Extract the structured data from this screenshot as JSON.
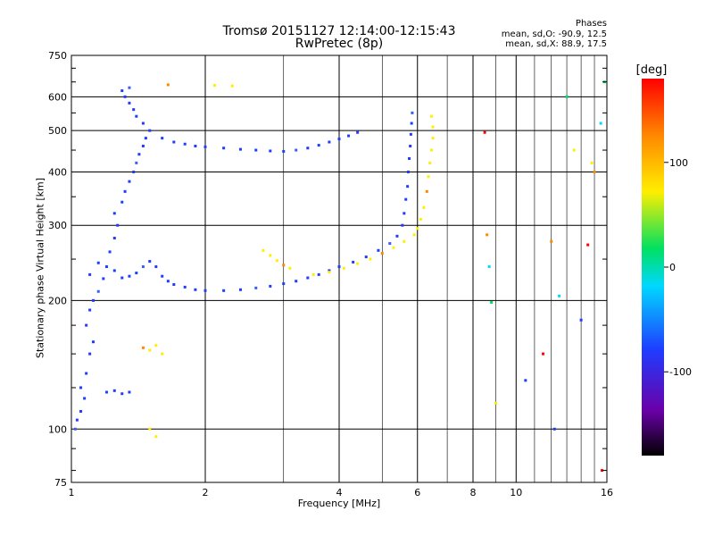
{
  "title_line1": "Tromsø 20151127 12:14:00-12:15:43",
  "title_line2": "RwPretec (8p)",
  "phases": {
    "title": "Phases",
    "o_stats": "mean, sd,O: -90.9, 12.5",
    "x_stats": "mean, sd,X:  88.9, 17.5"
  },
  "colors": {
    "background": "#ffffff",
    "grid": "#000000",
    "blue": "#1f3cff",
    "yellow": "#ffee00"
  },
  "chart_data": {
    "type": "scatter",
    "xlabel": "Frequency [MHz]",
    "ylabel": "Stationary phase Virtual Height [km]",
    "xscale": "log",
    "yscale": "log",
    "xlim": [
      1,
      16
    ],
    "ylim": [
      75,
      750
    ],
    "grid": true,
    "xticks": [
      1,
      2,
      4,
      6,
      8,
      10,
      16
    ],
    "yticks": [
      75,
      100,
      200,
      300,
      400,
      500,
      600,
      750
    ],
    "colorbar": {
      "title": "[deg]",
      "range": [
        -180,
        180
      ],
      "ticks": [
        100,
        0,
        -100
      ],
      "colormap": "rainbow"
    },
    "series": [
      {
        "color": "blue",
        "points": [
          [
            1.02,
            100
          ],
          [
            1.03,
            105
          ],
          [
            1.05,
            110
          ],
          [
            1.07,
            118
          ],
          [
            1.05,
            125
          ],
          [
            1.08,
            135
          ],
          [
            1.1,
            150
          ],
          [
            1.12,
            160
          ],
          [
            1.08,
            175
          ],
          [
            1.1,
            190
          ],
          [
            1.12,
            200
          ],
          [
            1.15,
            210
          ],
          [
            1.18,
            225
          ],
          [
            1.2,
            240
          ],
          [
            1.22,
            260
          ],
          [
            1.25,
            280
          ],
          [
            1.27,
            300
          ],
          [
            1.25,
            320
          ],
          [
            1.3,
            340
          ],
          [
            1.32,
            360
          ],
          [
            1.35,
            380
          ],
          [
            1.38,
            400
          ],
          [
            1.4,
            420
          ],
          [
            1.42,
            440
          ],
          [
            1.45,
            460
          ],
          [
            1.47,
            480
          ],
          [
            1.5,
            500
          ],
          [
            1.45,
            520
          ],
          [
            1.4,
            540
          ],
          [
            1.38,
            560
          ],
          [
            1.35,
            580
          ],
          [
            1.32,
            600
          ],
          [
            1.3,
            620
          ],
          [
            1.35,
            630
          ],
          [
            1.2,
            122
          ],
          [
            1.25,
            123
          ],
          [
            1.3,
            121
          ],
          [
            1.35,
            122
          ],
          [
            1.1,
            230
          ],
          [
            1.15,
            245
          ],
          [
            1.25,
            235
          ],
          [
            1.3,
            226
          ],
          [
            1.35,
            228
          ],
          [
            1.4,
            232
          ],
          [
            1.45,
            240
          ],
          [
            1.5,
            247
          ],
          [
            1.55,
            240
          ],
          [
            1.6,
            228
          ],
          [
            1.65,
            222
          ],
          [
            1.7,
            218
          ],
          [
            1.8,
            215
          ],
          [
            1.9,
            212
          ],
          [
            2.0,
            211
          ],
          [
            2.2,
            211
          ],
          [
            2.4,
            212
          ],
          [
            2.6,
            214
          ],
          [
            2.8,
            216
          ],
          [
            3.0,
            219
          ],
          [
            3.2,
            222
          ],
          [
            3.4,
            226
          ],
          [
            3.6,
            230
          ],
          [
            3.8,
            235
          ],
          [
            4.0,
            240
          ],
          [
            4.3,
            246
          ],
          [
            4.6,
            253
          ],
          [
            4.9,
            262
          ],
          [
            5.2,
            272
          ],
          [
            5.4,
            283
          ],
          [
            5.55,
            300
          ],
          [
            5.6,
            320
          ],
          [
            5.65,
            345
          ],
          [
            5.7,
            370
          ],
          [
            5.72,
            400
          ],
          [
            5.75,
            430
          ],
          [
            5.78,
            460
          ],
          [
            5.8,
            490
          ],
          [
            5.82,
            520
          ],
          [
            5.84,
            550
          ],
          [
            1.6,
            480
          ],
          [
            1.7,
            470
          ],
          [
            1.8,
            465
          ],
          [
            1.9,
            460
          ],
          [
            2.0,
            458
          ],
          [
            2.2,
            455
          ],
          [
            2.4,
            452
          ],
          [
            2.6,
            450
          ],
          [
            2.8,
            448
          ],
          [
            3.0,
            447
          ],
          [
            3.2,
            450
          ],
          [
            3.4,
            455
          ],
          [
            3.6,
            462
          ],
          [
            3.8,
            470
          ],
          [
            4.0,
            478
          ],
          [
            4.2,
            486
          ],
          [
            4.4,
            495
          ]
        ]
      },
      {
        "color": "yellow",
        "points": [
          [
            1.45,
            155
          ],
          [
            1.5,
            153
          ],
          [
            1.55,
            157
          ],
          [
            1.6,
            150
          ],
          [
            2.7,
            262
          ],
          [
            2.8,
            255
          ],
          [
            2.9,
            248
          ],
          [
            3.0,
            242
          ],
          [
            3.1,
            238
          ],
          [
            3.5,
            230
          ],
          [
            3.8,
            233
          ],
          [
            4.1,
            238
          ],
          [
            4.4,
            244
          ],
          [
            4.7,
            250
          ],
          [
            5.0,
            258
          ],
          [
            5.3,
            266
          ],
          [
            5.6,
            275
          ],
          [
            5.9,
            285
          ],
          [
            6.0,
            295
          ],
          [
            6.1,
            310
          ],
          [
            6.2,
            330
          ],
          [
            6.3,
            360
          ],
          [
            6.35,
            390
          ],
          [
            6.4,
            420
          ],
          [
            6.45,
            450
          ],
          [
            6.5,
            480
          ],
          [
            6.5,
            510
          ],
          [
            6.45,
            540
          ],
          [
            1.65,
            640
          ],
          [
            2.1,
            638
          ],
          [
            2.3,
            636
          ],
          [
            1.5,
            100
          ],
          [
            1.55,
            96
          ]
        ]
      },
      {
        "color": "other",
        "points": [
          [
            8.5,
            495
          ],
          [
            8.6,
            285
          ],
          [
            8.7,
            240
          ],
          [
            8.8,
            198
          ],
          [
            9.0,
            115
          ],
          [
            10.5,
            130
          ],
          [
            11.5,
            150
          ],
          [
            12.0,
            275
          ],
          [
            12.5,
            205
          ],
          [
            13.0,
            600
          ],
          [
            13.5,
            450
          ],
          [
            14.0,
            180
          ],
          [
            14.5,
            270
          ],
          [
            15.0,
            400
          ],
          [
            15.5,
            520
          ],
          [
            15.8,
            650
          ],
          [
            14.8,
            420
          ],
          [
            12.2,
            100
          ],
          [
            15.6,
            80
          ]
        ]
      }
    ]
  }
}
